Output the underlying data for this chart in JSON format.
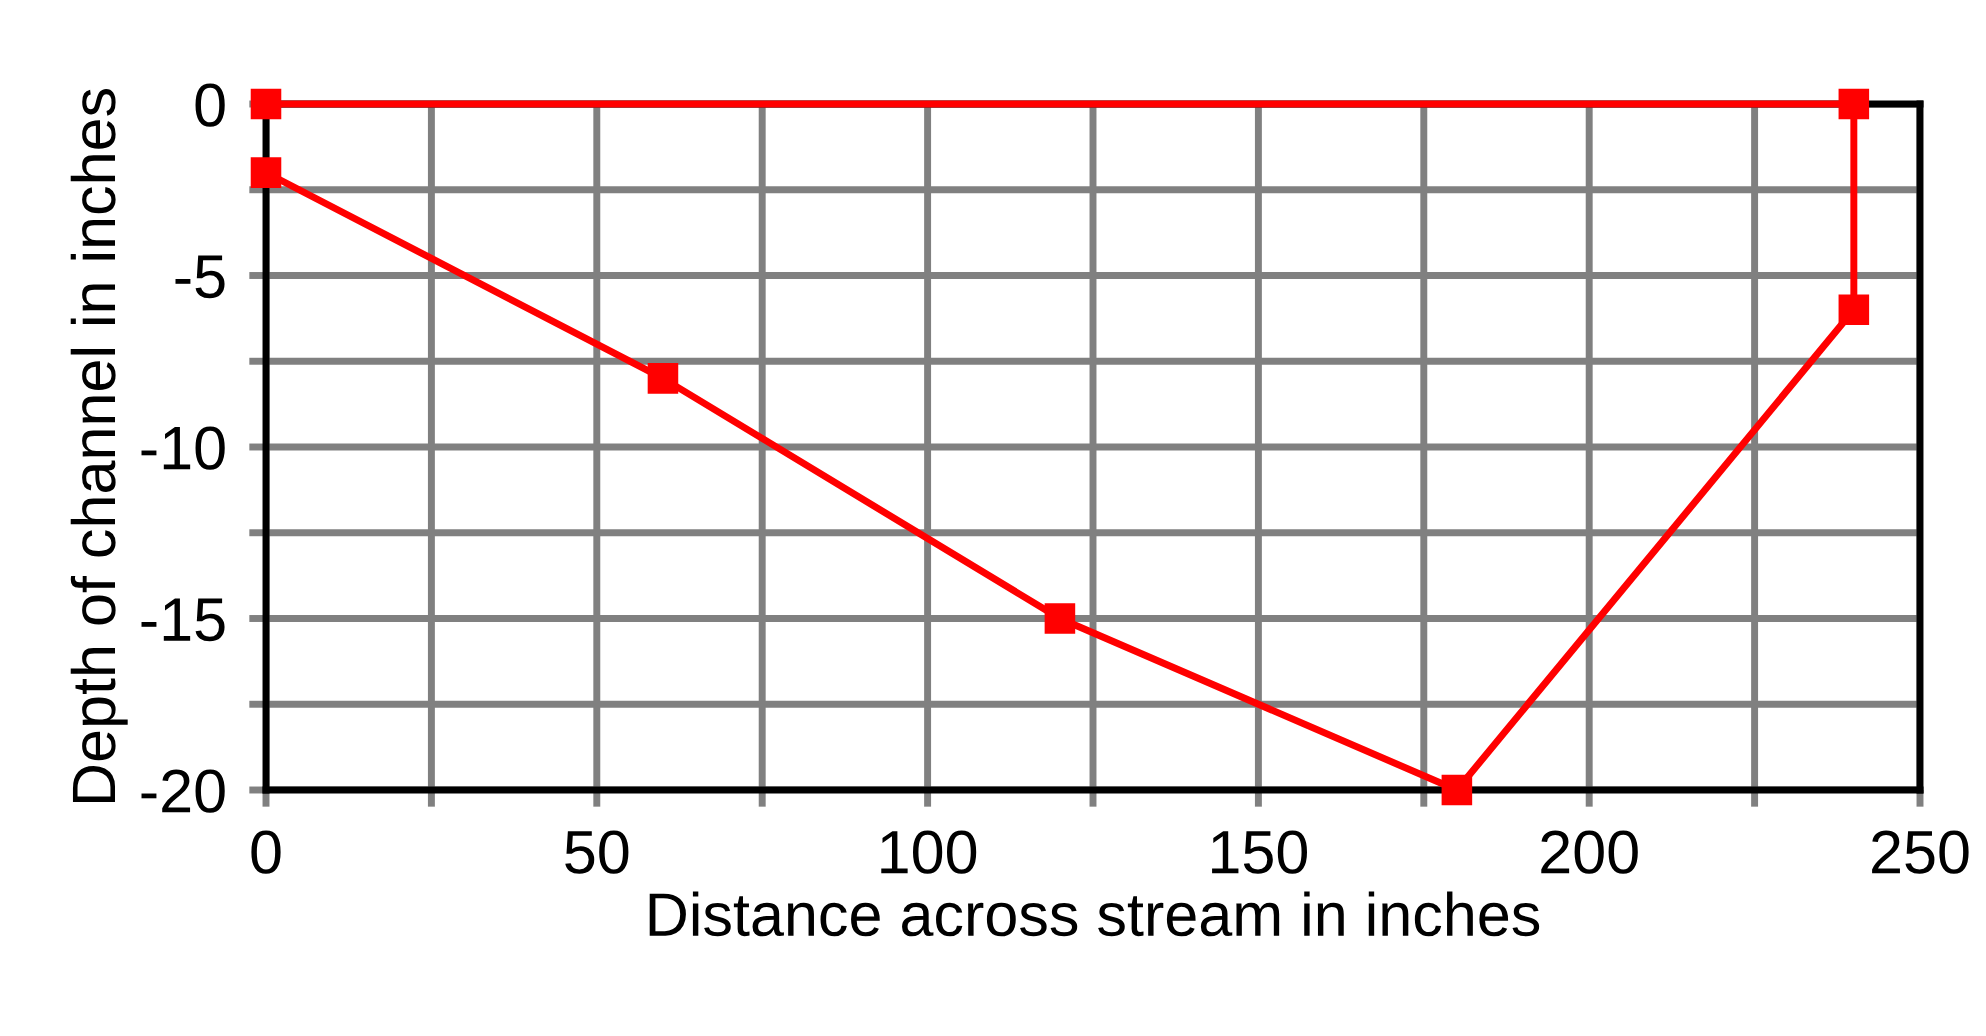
{
  "chart_data": {
    "type": "line",
    "xlabel": "Distance across stream in inches",
    "ylabel": "Depth of channel in inches",
    "series": [
      {
        "color": "#ff0000",
        "x": [
          0,
          240,
          240,
          180,
          120,
          60,
          0
        ],
        "values": [
          0,
          0,
          -6,
          -20,
          -15,
          -8,
          -2
        ]
      }
    ],
    "xlim": [
      0,
      250
    ],
    "ylim": [
      -20,
      0
    ],
    "xticks": [
      0,
      {
        "value": 25,
        "label": null
      },
      50,
      {
        "value": 75,
        "label": null
      },
      100,
      {
        "value": 125,
        "label": null
      },
      150,
      {
        "value": 175,
        "label": null
      },
      200,
      {
        "value": 225,
        "label": null
      },
      250
    ],
    "yticks": [
      -20,
      {
        "value": -17.5,
        "label": null
      },
      -15,
      {
        "value": -12.5,
        "label": null
      },
      -10,
      {
        "value": -7.5,
        "label": null
      },
      -5,
      {
        "value": -2.5,
        "label": null
      },
      0
    ],
    "grid": true,
    "marker": "square",
    "line_style": "solid"
  }
}
